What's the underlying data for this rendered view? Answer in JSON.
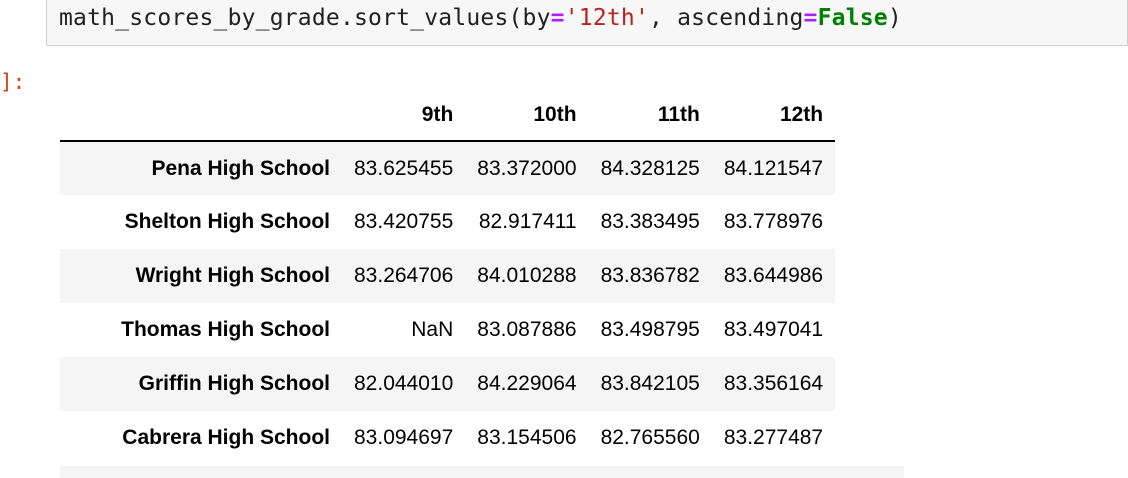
{
  "code": {
    "obj": "math_scores_by_grade.sort_values(by",
    "eq1": "=",
    "str": "'12th'",
    "mid": ", ascending",
    "eq2": "=",
    "kw": "False",
    "end": ")"
  },
  "prompt": "]:",
  "table": {
    "columns": [
      "9th",
      "10th",
      "11th",
      "12th"
    ],
    "rows": [
      {
        "index": "Pena High School",
        "values": [
          "83.625455",
          "83.372000",
          "84.328125",
          "84.121547"
        ]
      },
      {
        "index": "Shelton High School",
        "values": [
          "83.420755",
          "82.917411",
          "83.383495",
          "83.778976"
        ]
      },
      {
        "index": "Wright High School",
        "values": [
          "83.264706",
          "84.010288",
          "83.836782",
          "83.644986"
        ]
      },
      {
        "index": "Thomas High School",
        "values": [
          "NaN",
          "83.087886",
          "83.498795",
          "83.497041"
        ]
      },
      {
        "index": "Griffin High School",
        "values": [
          "82.044010",
          "84.229064",
          "83.842105",
          "83.356164"
        ]
      },
      {
        "index": "Cabrera High School",
        "values": [
          "83.094697",
          "83.154506",
          "82.765560",
          "83.277487"
        ]
      }
    ]
  }
}
